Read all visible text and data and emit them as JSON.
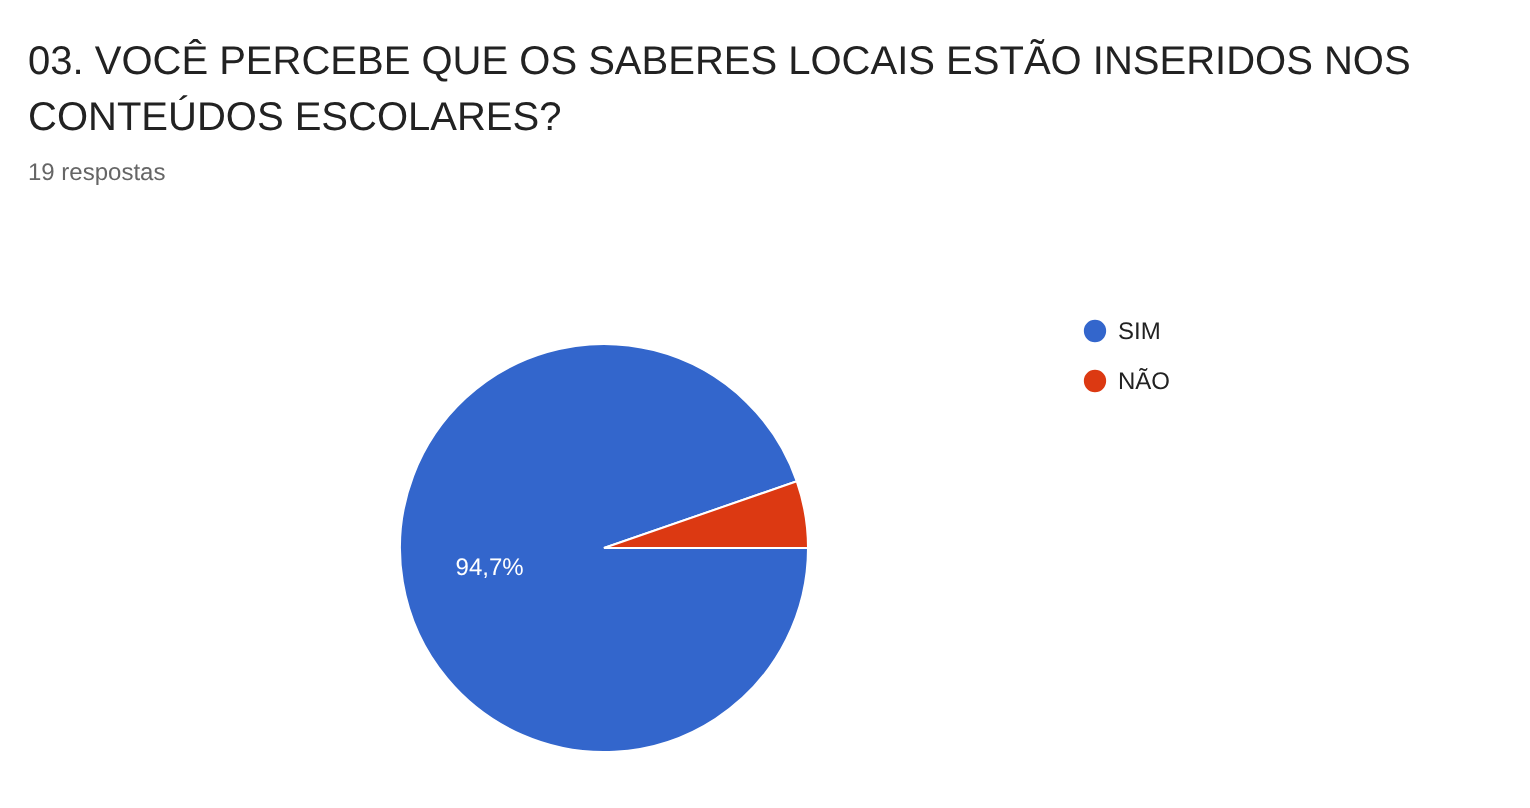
{
  "chart_data": {
    "type": "pie",
    "title": "03. VOCÊ PERCEBE QUE OS SABERES LOCAIS ESTÃO INSERIDOS NOS CONTEÚDOS ESCOLARES?",
    "subtitle": "19 respostas",
    "categories": [
      "SIM",
      "NÃO"
    ],
    "values": [
      94.7,
      5.3
    ],
    "colors": [
      "#3366cc",
      "#dc3912"
    ],
    "value_labels": [
      "94,7%",
      null
    ],
    "legend": "right"
  }
}
